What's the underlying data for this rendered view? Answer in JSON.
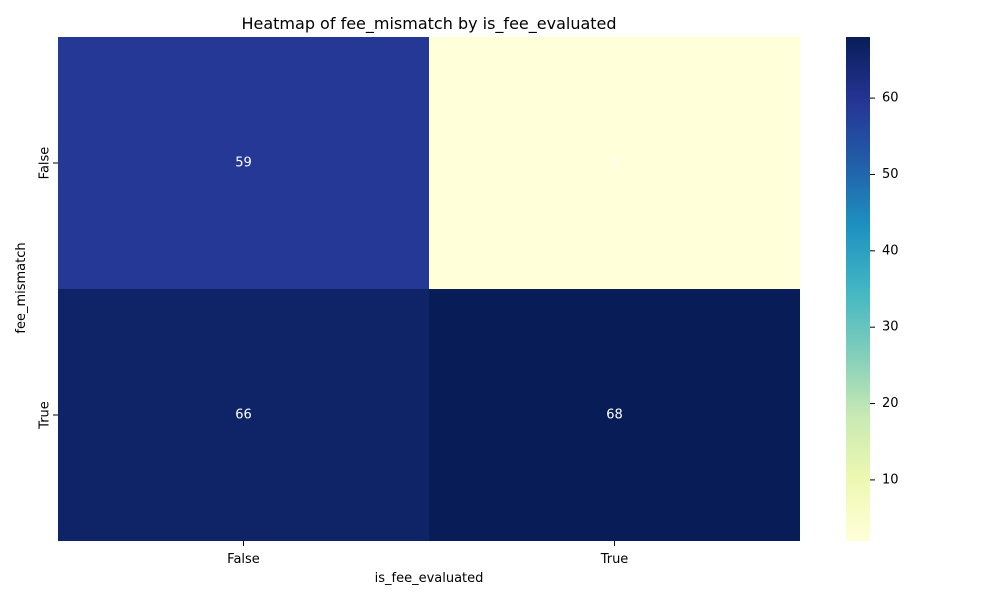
{
  "chart_data": {
    "type": "heatmap",
    "title": "Heatmap of fee_mismatch by is_fee_evaluated",
    "xlabel": "is_fee_evaluated",
    "ylabel": "fee_mismatch",
    "x_categories": [
      "False",
      "True"
    ],
    "y_categories": [
      "False",
      "True"
    ],
    "values": [
      [
        59,
        2
      ],
      [
        66,
        68
      ]
    ],
    "colormap": "YlGnBu",
    "colorbar": {
      "min": 2,
      "max": 68,
      "ticks": [
        10,
        20,
        30,
        40,
        50,
        60
      ]
    },
    "annotation_color": "#ffffff"
  }
}
